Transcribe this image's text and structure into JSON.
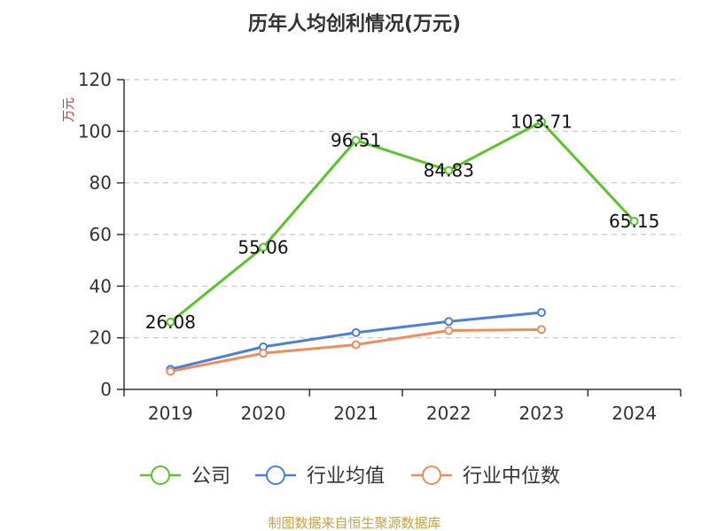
{
  "chart_data": {
    "type": "line",
    "title": "历年人均创利情况(万元)",
    "unit_label": "万元",
    "categories": [
      "2019",
      "2020",
      "2021",
      "2022",
      "2023",
      "2024"
    ],
    "ylim": [
      0,
      120
    ],
    "yticks": [
      0,
      20,
      40,
      60,
      80,
      100,
      120
    ],
    "grid": true,
    "legend_position": "bottom",
    "series": [
      {
        "name": "公司",
        "color": "#5ac52a",
        "show_labels": true,
        "values": [
          26.08,
          55.06,
          96.51,
          84.83,
          103.71,
          65.15
        ]
      },
      {
        "name": "行业均值",
        "color": "#4a7fdc",
        "show_labels": false,
        "values": [
          7.8,
          16.5,
          22.0,
          26.3,
          29.8,
          null
        ]
      },
      {
        "name": "行业中位数",
        "color": "#f08c5a",
        "show_labels": false,
        "values": [
          7.0,
          14.0,
          17.3,
          22.8,
          23.2,
          null
        ]
      }
    ],
    "source": "制图数据来自恒生聚源数据库"
  }
}
